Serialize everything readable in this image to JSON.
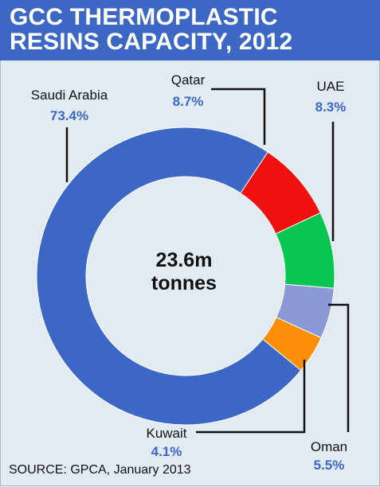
{
  "header": {
    "title": "GCC THERMOPLASTIC\nRESINS CAPACITY, 2012"
  },
  "center": {
    "line1": "23.6m",
    "line2": "tonnes"
  },
  "source": "SOURCE: GPCA, January 2013",
  "colors": {
    "header_bg": "#3c67c4",
    "value_text": "#3c67c4",
    "background": "#e3ebf2"
  },
  "chart_data": {
    "type": "pie",
    "title": "GCC THERMOPLASTIC RESINS CAPACITY, 2012",
    "total_label": "23.6m tonnes",
    "unit": "%",
    "slices": [
      {
        "label": "Saudi Arabia",
        "value": 73.4,
        "display": "73.4%",
        "color": "#3c67c4"
      },
      {
        "label": "Qatar",
        "value": 8.7,
        "display": "8.7%",
        "color": "#ef1010"
      },
      {
        "label": "UAE",
        "value": 8.3,
        "display": "8.3%",
        "color": "#08c650"
      },
      {
        "label": "Oman",
        "value": 5.5,
        "display": "5.5%",
        "color": "#8a9ad6"
      },
      {
        "label": "Kuwait",
        "value": 4.1,
        "display": "4.1%",
        "color": "#fd8e08"
      }
    ]
  }
}
